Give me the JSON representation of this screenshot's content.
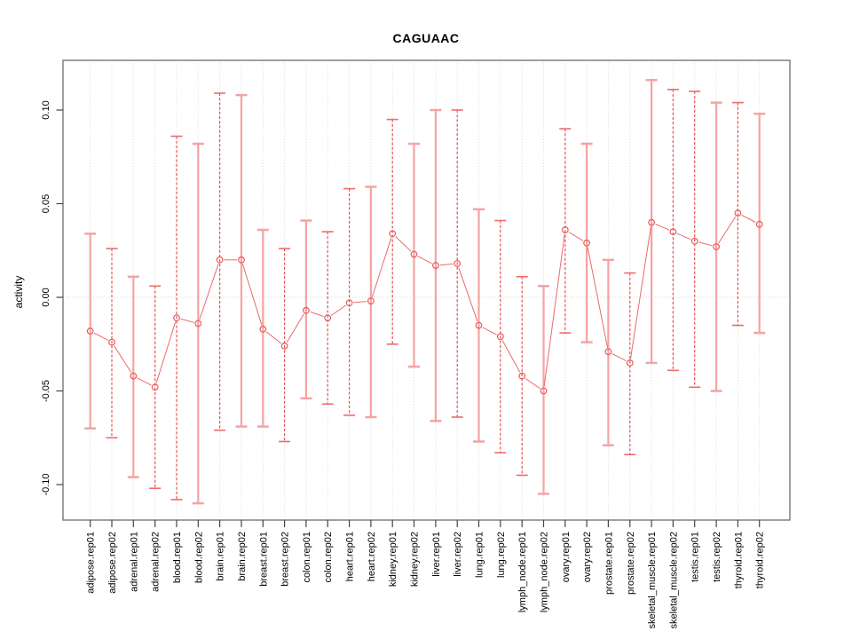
{
  "figure": {
    "title": "CAGUAAC",
    "y_axis_label": "activity"
  },
  "chart_data": {
    "type": "scatter",
    "subtype": "points-with-error-bars-connected-line",
    "title": "CAGUAAC",
    "xlabel": "",
    "ylabel": "activity",
    "categories": [
      "adipose.rep01",
      "adipose.rep02",
      "adrenal.rep01",
      "adrenal.rep02",
      "blood.rep01",
      "blood.rep02",
      "brain.rep01",
      "brain.rep02",
      "breast.rep01",
      "breast.rep02",
      "colon.rep01",
      "colon.rep02",
      "heart.rep01",
      "heart.rep02",
      "kidney.rep01",
      "kidney.rep02",
      "liver.rep01",
      "liver.rep02",
      "lung.rep01",
      "lung.rep02",
      "lymph_node.rep01",
      "lymph_node.rep02",
      "ovary.rep01",
      "ovary.rep02",
      "prostate.rep01",
      "prostate.rep02",
      "skeletal_muscle.rep01",
      "skeletal_muscle.rep02",
      "testis.rep01",
      "testis.rep02",
      "thyroid.rep01",
      "thyroid.rep02"
    ],
    "series": [
      {
        "name": "activity",
        "values": [
          -0.018,
          -0.024,
          -0.042,
          -0.048,
          -0.011,
          -0.014,
          0.02,
          0.02,
          -0.017,
          -0.026,
          -0.007,
          -0.011,
          -0.003,
          -0.002,
          0.034,
          0.023,
          0.017,
          0.018,
          -0.015,
          -0.021,
          -0.042,
          -0.05,
          0.036,
          0.029,
          -0.029,
          -0.035,
          0.04,
          0.035,
          0.03,
          0.027,
          0.045,
          0.039
        ],
        "ci_lower": [
          -0.07,
          -0.075,
          -0.096,
          -0.102,
          -0.108,
          -0.11,
          -0.071,
          -0.069,
          -0.069,
          -0.077,
          -0.054,
          -0.057,
          -0.063,
          -0.064,
          -0.025,
          -0.037,
          -0.066,
          -0.064,
          -0.077,
          -0.083,
          -0.095,
          -0.105,
          -0.019,
          -0.024,
          -0.079,
          -0.084,
          -0.035,
          -0.039,
          -0.048,
          -0.05,
          -0.015,
          -0.019
        ],
        "ci_upper": [
          0.034,
          0.026,
          0.011,
          0.006,
          0.086,
          0.082,
          0.109,
          0.108,
          0.036,
          0.026,
          0.041,
          0.035,
          0.058,
          0.059,
          0.095,
          0.082,
          0.1,
          0.1,
          0.047,
          0.041,
          0.011,
          0.006,
          0.09,
          0.082,
          0.02,
          0.013,
          0.116,
          0.111,
          0.11,
          0.104,
          0.104,
          0.098
        ],
        "error_bar_styles": [
          "solid",
          "dashed",
          "solid",
          "dashed",
          "dashed",
          "solid",
          "dashed",
          "solid",
          "solid",
          "dashed",
          "solid",
          "dashed",
          "dashed",
          "solid",
          "dashed",
          "solid",
          "solid",
          "dashed",
          "solid",
          "dashed",
          "dashed",
          "solid",
          "dashed",
          "solid",
          "solid",
          "dashed",
          "solid",
          "dashed",
          "dashed",
          "solid",
          "dashed",
          "solid"
        ]
      }
    ],
    "yticks": {
      "values": [
        0.1,
        0.05,
        0.0,
        -0.05,
        -0.1
      ],
      "labels": [
        "0.10",
        "0.05",
        "0.00",
        "-0.05",
        "-0.10"
      ]
    },
    "ylim": [
      -0.118,
      0.127
    ],
    "zero_reference_line": 0,
    "grid": {
      "vertical_per_category": true,
      "horizontal_lines": false,
      "style": "dotted"
    },
    "legend_position": "none",
    "point_marker": "open-circle",
    "colors": {
      "point": "#e85a5a",
      "connector_line": "#ea6a6a",
      "error_bar_solid": "#f5a3a3",
      "error_bar_dashed": "#e85050",
      "error_cap_dashed": "#ee6b6b",
      "grid_line": "#d9d9d9",
      "zero_line": "#cfcfcf",
      "axis_box": "#787878",
      "tick": "#444444",
      "text": "#000000",
      "background": "#ffffff"
    }
  }
}
